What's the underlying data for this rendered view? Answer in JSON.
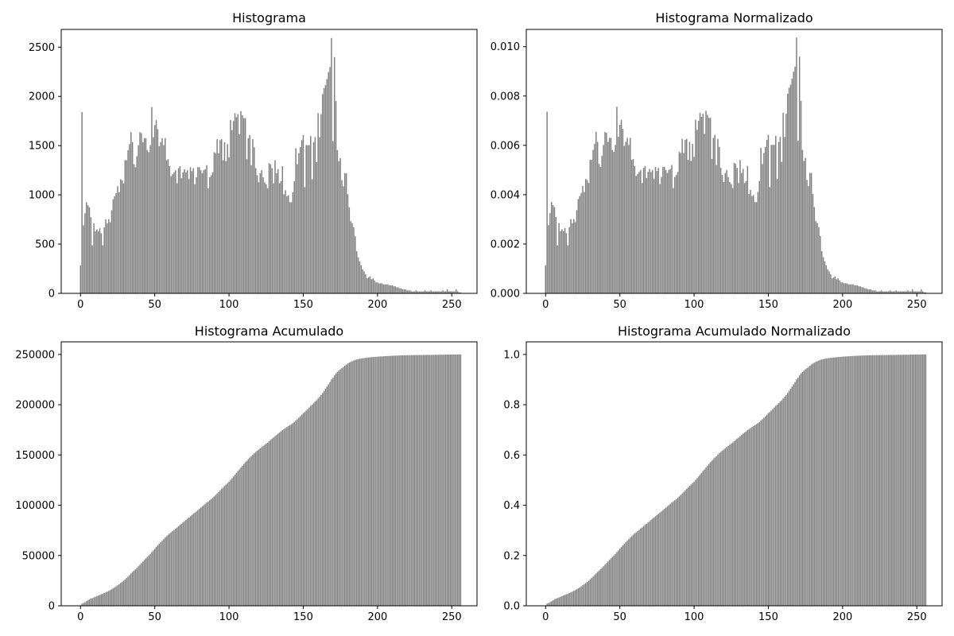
{
  "figure": {
    "panels_layout": "2x2 grid",
    "bar_color": "#808080",
    "axes_color": "#000000",
    "background": "#ffffff"
  },
  "chart_data": [
    {
      "type": "bar",
      "title": "Histograma",
      "xlim": [
        -13,
        267
      ],
      "ylim": [
        0,
        2680
      ],
      "xticks": [
        0,
        50,
        100,
        150,
        200,
        250
      ],
      "yticks": [
        0,
        500,
        1000,
        1500,
        2000,
        2500
      ],
      "ytick_labels": [
        "0",
        "500",
        "1000",
        "1500",
        "2000",
        "2500"
      ],
      "grid": false,
      "x": "0..255 (256 bins)",
      "values": [
        280,
        1810,
        680,
        800,
        910,
        880,
        860,
        760,
        480,
        700,
        620,
        640,
        620,
        650,
        600,
        480,
        660,
        740,
        700,
        740,
        710,
        830,
        940,
        970,
        1000,
        1070,
        1010,
        1140,
        1130,
        1100,
        1330,
        1330,
        1430,
        1490,
        1610,
        1510,
        1290,
        1260,
        1370,
        1480,
        1610,
        1600,
        1510,
        1550,
        1550,
        1430,
        1410,
        1480,
        1860,
        1560,
        1680,
        1730,
        1640,
        1470,
        1510,
        1550,
        1480,
        1550,
        1330,
        1340,
        1270,
        1170,
        1190,
        1210,
        1230,
        1100,
        1250,
        1270,
        1150,
        1210,
        1240,
        1210,
        1230,
        1140,
        1260,
        1220,
        1250,
        1090,
        1160,
        1260,
        1260,
        1230,
        1200,
        1230,
        1240,
        1280,
        1050,
        1160,
        1180,
        1210,
        1410,
        1400,
        1540,
        1400,
        1530,
        1540,
        1330,
        1510,
        1320,
        1490,
        1360,
        1730,
        1630,
        1720,
        1800,
        1760,
        1790,
        1590,
        1820,
        1780,
        1750,
        1750,
        1340,
        1550,
        1580,
        1280,
        1540,
        1460,
        1250,
        1180,
        1110,
        1200,
        1230,
        1160,
        1110,
        1090,
        1050,
        1300,
        1290,
        1250,
        1100,
        1330,
        1200,
        1240,
        1100,
        1120,
        1270,
        990,
        1030,
        970,
        980,
        910,
        910,
        1010,
        1120,
        1450,
        1290,
        1400,
        1460,
        1530,
        1580,
        1060,
        1480,
        1480,
        1480,
        1570,
        1140,
        1510,
        1560,
        1310,
        1800,
        1560,
        1790,
        1990,
        2050,
        2080,
        2140,
        2210,
        2260,
        2550,
        1520,
        2360,
        1920,
        1430,
        1320,
        1350,
        1130,
        1070,
        1200,
        1200,
        990,
        860,
        720,
        700,
        660,
        570,
        420,
        360,
        320,
        280,
        240,
        220,
        190,
        150,
        160,
        170,
        140,
        150,
        130,
        110,
        110,
        100,
        100,
        100,
        90,
        90,
        90,
        90,
        80,
        80,
        80,
        70,
        70,
        60,
        60,
        50,
        50,
        40,
        40,
        40,
        30,
        30,
        30,
        20,
        20,
        20,
        30,
        20,
        20,
        20,
        20,
        20,
        30,
        20,
        20,
        20,
        30,
        20,
        20,
        20,
        20,
        20,
        20,
        20,
        30,
        20,
        20,
        40,
        20,
        20,
        20,
        20,
        20,
        40,
        20,
        10,
        10
      ]
    },
    {
      "type": "bar",
      "title": "Histograma Normalizado",
      "xlim": [
        -13,
        267
      ],
      "ylim": [
        0,
        0.0107
      ],
      "xticks": [
        0,
        50,
        100,
        150,
        200,
        250
      ],
      "yticks": [
        0,
        0.002,
        0.004,
        0.006,
        0.008,
        0.01
      ],
      "ytick_labels": [
        "0.000",
        "0.002",
        "0.004",
        "0.006",
        "0.008",
        "0.010"
      ],
      "grid": false,
      "x": "0..255 (256 bins)",
      "values": "Histograma values / 250000"
    },
    {
      "type": "bar",
      "title": "Histograma Acumulado",
      "xlim": [
        -13,
        267
      ],
      "ylim": [
        0,
        262500
      ],
      "xticks": [
        0,
        50,
        100,
        150,
        200,
        250
      ],
      "yticks": [
        0,
        50000,
        100000,
        150000,
        200000,
        250000
      ],
      "ytick_labels": [
        "0",
        "50000",
        "100000",
        "150000",
        "200000",
        "250000"
      ],
      "grid": false,
      "x": "0..255 (256 bins)",
      "values": "cumulative sum of Histograma values"
    },
    {
      "type": "bar",
      "title": "Histograma Acumulado Normalizado",
      "xlim": [
        -13,
        267
      ],
      "ylim": [
        0,
        1.05
      ],
      "xticks": [
        0,
        50,
        100,
        150,
        200,
        250
      ],
      "yticks": [
        0,
        0.2,
        0.4,
        0.6,
        0.8,
        1.0
      ],
      "ytick_labels": [
        "0.0",
        "0.2",
        "0.4",
        "0.6",
        "0.8",
        "1.0"
      ],
      "grid": false,
      "x": "0..255 (256 bins)",
      "values": "cumulative sum / total"
    }
  ],
  "xtick_labels": [
    "0",
    "50",
    "100",
    "150",
    "200",
    "250"
  ]
}
